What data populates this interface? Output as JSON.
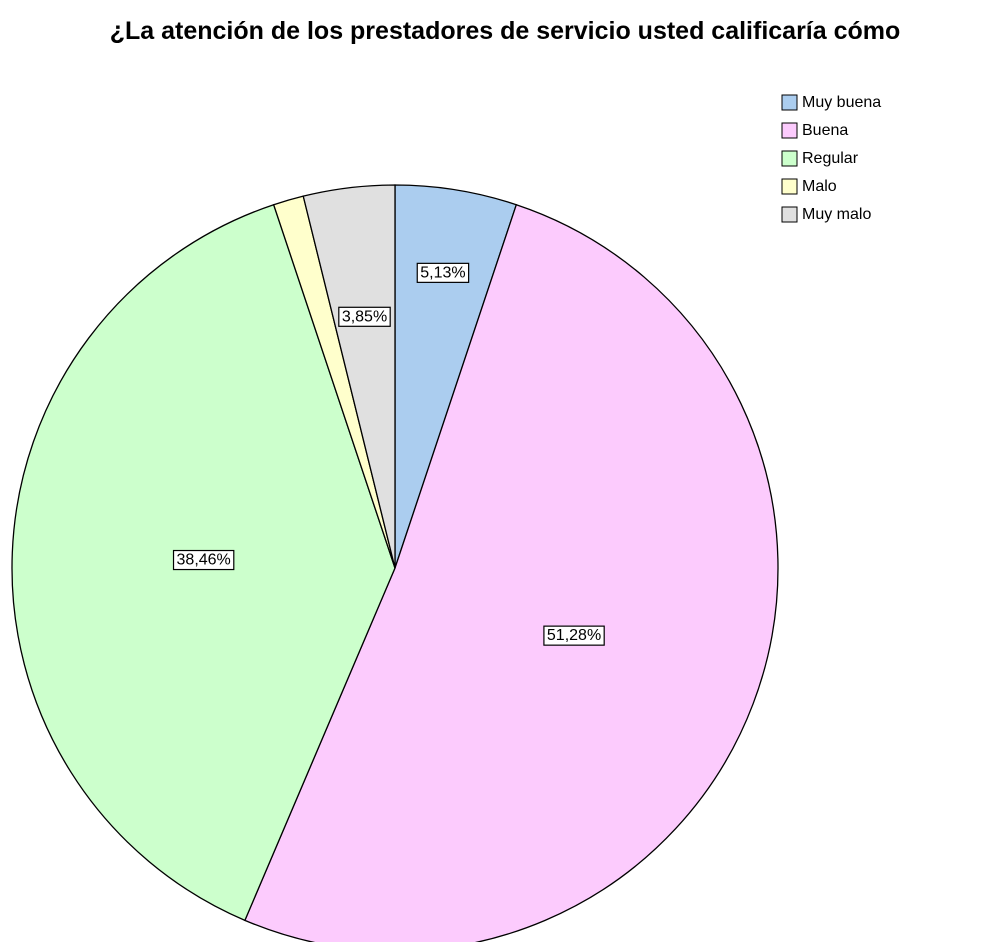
{
  "chart_data": {
    "type": "pie",
    "title": "¿La atención de los prestadores de servicio usted calificaría cómo",
    "categories": [
      "Muy buena",
      "Buena",
      "Regular",
      "Malo",
      "Muy malo"
    ],
    "values": [
      5.13,
      51.28,
      38.46,
      1.28,
      3.85
    ],
    "value_labels": [
      "5,13%",
      "51,28%",
      "38,46%",
      null,
      "3,85%"
    ],
    "colors": [
      "#abcdef",
      "#fccbfd",
      "#ccffcc",
      "#ffffcc",
      "#e0e0e0"
    ],
    "legend": "top-right"
  }
}
